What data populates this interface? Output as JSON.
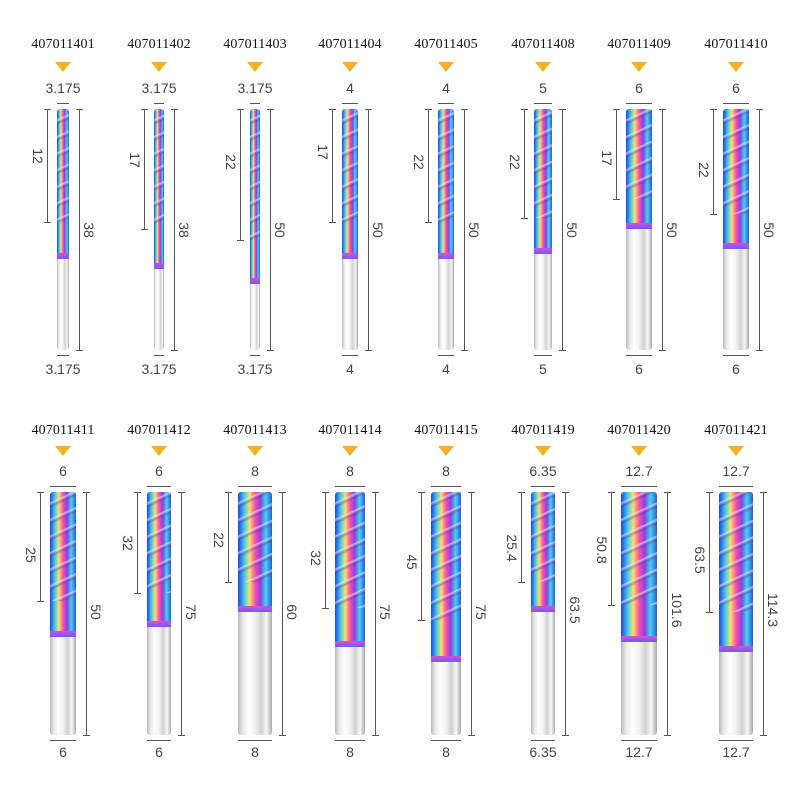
{
  "colors": {
    "marker": "#f2b225",
    "text": "#111111",
    "dim_text": "#444444"
  },
  "tools": [
    {
      "code": "407011401",
      "d_top": "3.175",
      "flute": "12",
      "overall": "38",
      "d_bottom": "3.175"
    },
    {
      "code": "407011402",
      "d_top": "3.175",
      "flute": "17",
      "overall": "38",
      "d_bottom": "3.175"
    },
    {
      "code": "407011403",
      "d_top": "3.175",
      "flute": "22",
      "overall": "50",
      "d_bottom": "3.175"
    },
    {
      "code": "407011404",
      "d_top": "4",
      "flute": "17",
      "overall": "50",
      "d_bottom": "4"
    },
    {
      "code": "407011405",
      "d_top": "4",
      "flute": "22",
      "overall": "50",
      "d_bottom": "4"
    },
    {
      "code": "407011408",
      "d_top": "5",
      "flute": "22",
      "overall": "50",
      "d_bottom": "5"
    },
    {
      "code": "407011409",
      "d_top": "6",
      "flute": "17",
      "overall": "50",
      "d_bottom": "6"
    },
    {
      "code": "407011410",
      "d_top": "6",
      "flute": "22",
      "overall": "50",
      "d_bottom": "6"
    },
    {
      "code": "407011411",
      "d_top": "6",
      "flute": "25",
      "overall": "50",
      "d_bottom": "6"
    },
    {
      "code": "407011412",
      "d_top": "6",
      "flute": "32",
      "overall": "75",
      "d_bottom": "6"
    },
    {
      "code": "407011413",
      "d_top": "8",
      "flute": "22",
      "overall": "60",
      "d_bottom": "8"
    },
    {
      "code": "407011414",
      "d_top": "8",
      "flute": "32",
      "overall": "75",
      "d_bottom": "8"
    },
    {
      "code": "407011415",
      "d_top": "8",
      "flute": "45",
      "overall": "75",
      "d_bottom": "8"
    },
    {
      "code": "407011419",
      "d_top": "6.35",
      "flute": "25.4",
      "overall": "63.5",
      "d_bottom": "6.35"
    },
    {
      "code": "407011420",
      "d_top": "12.7",
      "flute": "50.8",
      "overall": "101.6",
      "d_bottom": "12.7"
    },
    {
      "code": "407011421",
      "d_top": "12.7",
      "flute": "63.5",
      "overall": "114.3",
      "d_bottom": "12.7"
    }
  ]
}
